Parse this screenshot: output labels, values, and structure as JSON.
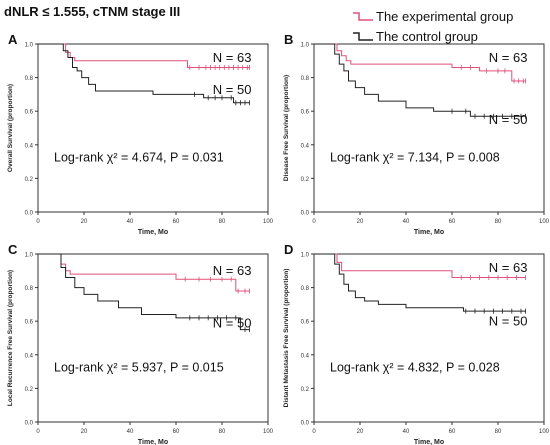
{
  "title": "dNLR ≤ 1.555, cTNM stage III",
  "legend": [
    {
      "label": "The experimental group",
      "color": "#e0507a"
    },
    {
      "label": "The control group",
      "color": "#222222"
    }
  ],
  "chart_data": [
    {
      "type": "line",
      "panel_label": "A",
      "ylabel": "Overall Survival (proportion)",
      "xlabel": "Time, Mo",
      "xlim": [
        0,
        100
      ],
      "ylim": [
        0,
        1.0
      ],
      "xticks": [
        "0",
        "20",
        "40",
        "60",
        "80",
        "100"
      ],
      "yticks": [
        "0.0",
        "0.2",
        "0.4",
        "0.6",
        "0.8",
        "1.0"
      ],
      "grid": false,
      "annotation": "Log-rank χ² = 4.674, P = 0.031",
      "series": [
        {
          "n_label": "N = 63",
          "color": "#e0507a",
          "x": [
            0,
            10,
            12,
            14,
            16,
            65,
            92
          ],
          "y": [
            1.0,
            1.0,
            0.95,
            0.92,
            0.9,
            0.86,
            0.86
          ],
          "censored": [
            66,
            70,
            73,
            75,
            77,
            79,
            81,
            83,
            85,
            87,
            89,
            91,
            92
          ]
        },
        {
          "n_label": "N = 50",
          "color": "#222222",
          "x": [
            0,
            8,
            11,
            13,
            15,
            17,
            19,
            22,
            25,
            50,
            72,
            82,
            85,
            92
          ],
          "y": [
            1.0,
            1.0,
            0.96,
            0.92,
            0.86,
            0.84,
            0.8,
            0.76,
            0.72,
            0.7,
            0.68,
            0.68,
            0.65,
            0.65
          ],
          "censored": [
            68,
            74,
            77,
            80,
            84,
            86,
            88,
            90,
            92
          ]
        }
      ]
    },
    {
      "type": "line",
      "panel_label": "B",
      "ylabel": "Disease Free Survival (proportion)",
      "xlabel": "Time, Mo",
      "xlim": [
        0,
        100
      ],
      "ylim": [
        0,
        1.0
      ],
      "xticks": [
        "0",
        "20",
        "40",
        "60",
        "80",
        "100"
      ],
      "yticks": [
        "0.0",
        "0.2",
        "0.4",
        "0.6",
        "0.8",
        "1.0"
      ],
      "grid": false,
      "annotation": "Log-rank χ² = 7.134, P = 0.008",
      "series": [
        {
          "n_label": "N = 63",
          "color": "#e0507a",
          "x": [
            0,
            8,
            10,
            12,
            14,
            16,
            60,
            72,
            86,
            92
          ],
          "y": [
            1.0,
            1.0,
            0.96,
            0.93,
            0.9,
            0.88,
            0.86,
            0.84,
            0.78,
            0.78
          ],
          "censored": [
            64,
            68,
            75,
            80,
            83,
            87,
            89,
            91,
            92
          ]
        },
        {
          "n_label": "N = 50",
          "color": "#222222",
          "x": [
            0,
            7,
            9,
            11,
            13,
            15,
            18,
            22,
            28,
            40,
            52,
            68,
            92
          ],
          "y": [
            1.0,
            1.0,
            0.94,
            0.88,
            0.84,
            0.78,
            0.74,
            0.7,
            0.66,
            0.62,
            0.6,
            0.57,
            0.57
          ],
          "censored": [
            60,
            66,
            70,
            74,
            78,
            82,
            86,
            90,
            92
          ]
        }
      ]
    },
    {
      "type": "line",
      "panel_label": "C",
      "ylabel": "Local Recurrence Free Survival (proportion)",
      "xlabel": "Time, Mo",
      "xlim": [
        0,
        100
      ],
      "ylim": [
        0,
        1.0
      ],
      "xticks": [
        "0",
        "20",
        "40",
        "60",
        "80",
        "100"
      ],
      "yticks": [
        "0.0",
        "0.2",
        "0.4",
        "0.6",
        "0.8",
        "1.0"
      ],
      "grid": false,
      "annotation": "Log-rank χ² = 5.937, P = 0.015",
      "series": [
        {
          "n_label": "N = 63",
          "color": "#e0507a",
          "x": [
            0,
            8,
            10,
            12,
            14,
            60,
            86,
            92
          ],
          "y": [
            1.0,
            1.0,
            0.94,
            0.9,
            0.88,
            0.85,
            0.78,
            0.78
          ],
          "censored": [
            64,
            70,
            75,
            80,
            84,
            87,
            90,
            92
          ]
        },
        {
          "n_label": "N = 50",
          "color": "#222222",
          "x": [
            0,
            8,
            10,
            12,
            16,
            20,
            26,
            35,
            45,
            60,
            88,
            92
          ],
          "y": [
            1.0,
            1.0,
            0.92,
            0.86,
            0.8,
            0.76,
            0.72,
            0.68,
            0.64,
            0.62,
            0.55,
            0.55
          ],
          "censored": [
            66,
            70,
            74,
            78,
            82,
            86,
            90,
            92
          ]
        }
      ]
    },
    {
      "type": "line",
      "panel_label": "D",
      "ylabel": "Distant Metastasis Free Survival (proportion)",
      "xlabel": "Time, Mo",
      "xlim": [
        0,
        100
      ],
      "ylim": [
        0,
        1.0
      ],
      "xticks": [
        "0",
        "20",
        "40",
        "60",
        "80",
        "100"
      ],
      "yticks": [
        "0.0",
        "0.2",
        "0.4",
        "0.6",
        "0.8",
        "1.0"
      ],
      "grid": false,
      "annotation": "Log-rank χ² = 4.832, P = 0.028",
      "series": [
        {
          "n_label": "N = 63",
          "color": "#e0507a",
          "x": [
            0,
            8,
            10,
            12,
            60,
            92
          ],
          "y": [
            1.0,
            1.0,
            0.95,
            0.9,
            0.86,
            0.86
          ],
          "censored": [
            64,
            68,
            72,
            76,
            80,
            84,
            88,
            92
          ]
        },
        {
          "n_label": "N = 50",
          "color": "#222222",
          "x": [
            0,
            7,
            9,
            11,
            13,
            15,
            18,
            22,
            28,
            40,
            65,
            92
          ],
          "y": [
            1.0,
            1.0,
            0.94,
            0.88,
            0.82,
            0.78,
            0.74,
            0.72,
            0.7,
            0.68,
            0.66,
            0.66
          ],
          "censored": [
            66,
            70,
            74,
            78,
            82,
            86,
            90,
            92
          ]
        }
      ]
    }
  ]
}
